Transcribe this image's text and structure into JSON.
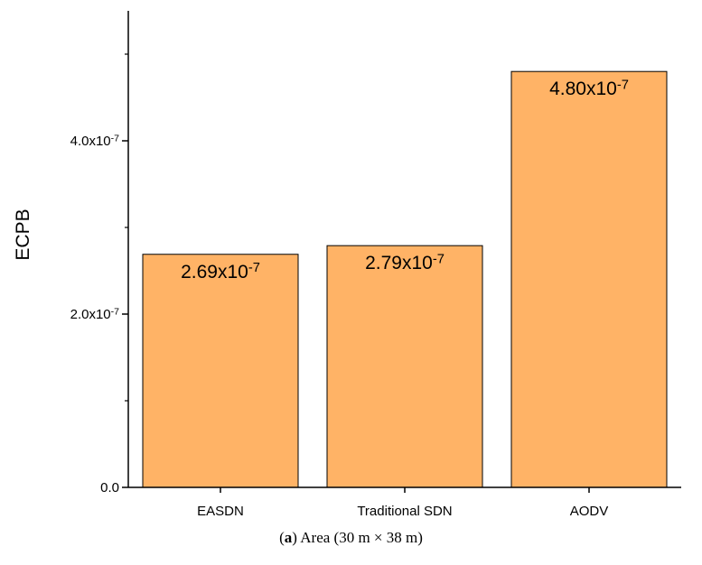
{
  "chart_data": {
    "type": "bar",
    "categories": [
      "EASDN",
      "Traditional SDN",
      "AODV"
    ],
    "values": [
      2.69e-07,
      2.79e-07,
      4.8e-07
    ],
    "data_labels": [
      {
        "mantissa": "2.69x10",
        "exponent": "-7"
      },
      {
        "mantissa": "2.79x10",
        "exponent": "-7"
      },
      {
        "mantissa": "4.80x10",
        "exponent": "-7"
      }
    ],
    "ylabel": "ECPB",
    "xlabel": "",
    "ylim": [
      0,
      5.5e-07
    ],
    "yticks": [
      {
        "value": 0,
        "label": "0.0",
        "exponent": ""
      },
      {
        "value": 2e-07,
        "label": "2.0x10",
        "exponent": "-7"
      },
      {
        "value": 4e-07,
        "label": "4.0x10",
        "exponent": "-7"
      }
    ],
    "bar_color": "#FFB366",
    "bar_edge_color": "#000000",
    "grid": false,
    "legend": "none"
  },
  "caption": {
    "label": "a",
    "text": " Area (30 m × 38 m)"
  }
}
